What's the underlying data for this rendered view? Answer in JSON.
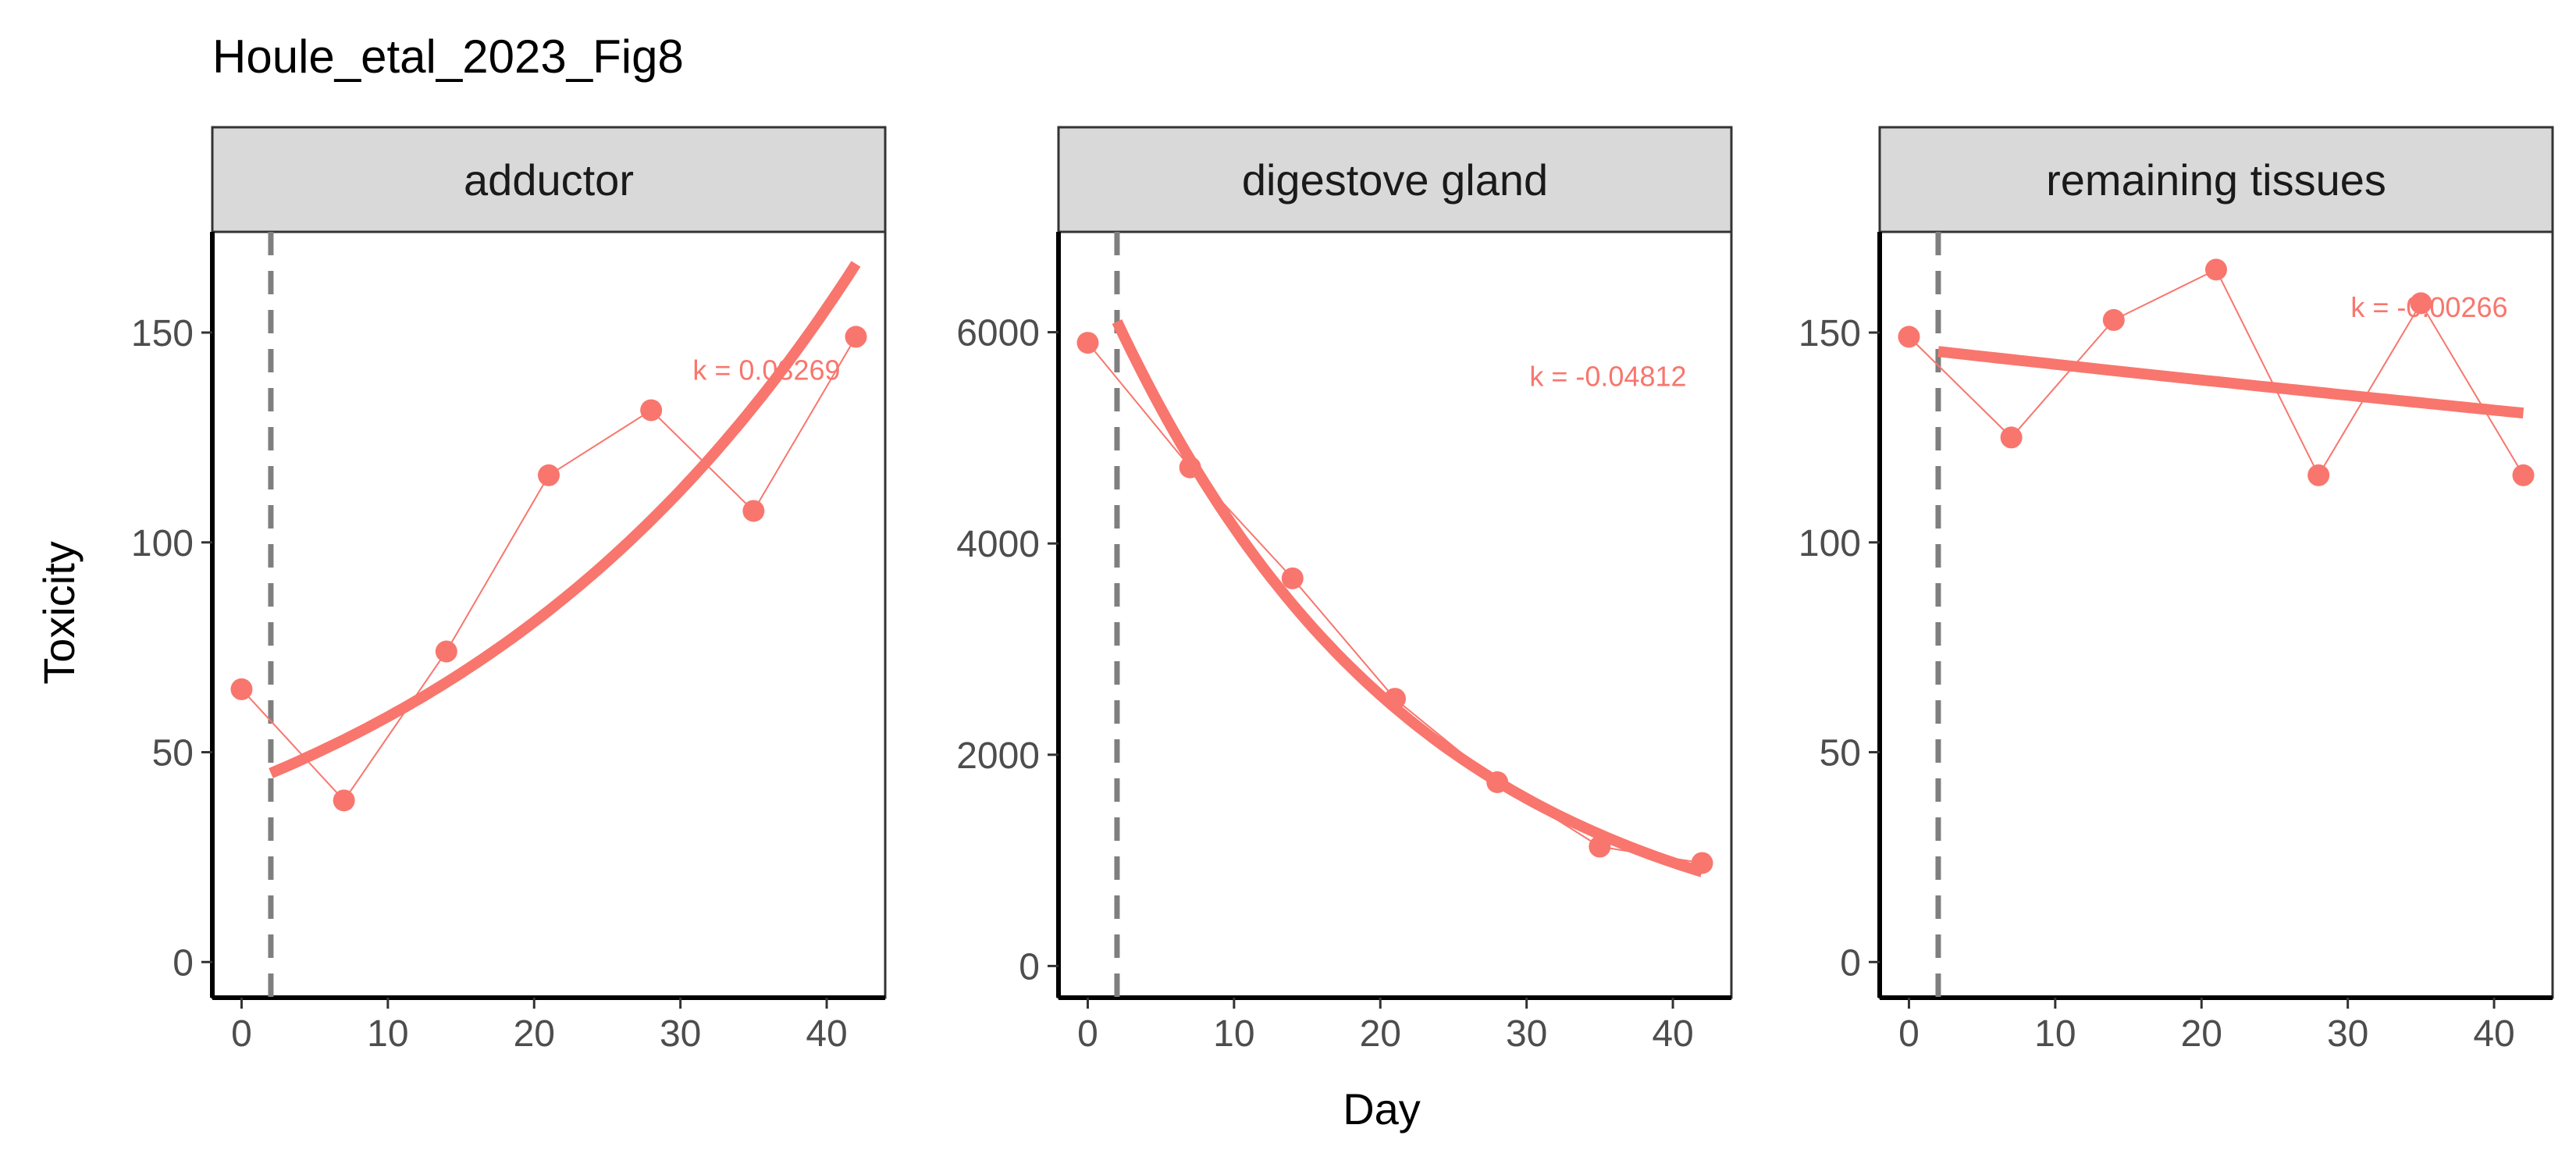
{
  "chart_data": {
    "type": "line",
    "title": "Houle_etal_2023_Fig8",
    "xlabel": "Day",
    "ylabel": "Toxicity",
    "color": "#F8766D",
    "vline_x": 2,
    "grid": false,
    "xlim": [
      -2,
      44
    ],
    "xticks": [
      0,
      10,
      20,
      30,
      40
    ],
    "x": [
      0,
      7,
      14,
      21,
      28,
      35,
      42
    ],
    "panels": [
      {
        "name": "adductor",
        "values": [
          65,
          38.5,
          74,
          116,
          131.5,
          107.5,
          149
        ],
        "ylim": [
          -8.5,
          174
        ],
        "yticks": [
          0,
          50,
          100,
          150
        ],
        "fit": {
          "x0": 2,
          "x1": 42,
          "y0": 45,
          "k": 0.03269
        },
        "annotation": "k = 0.03269",
        "annotation_pos": {
          "x": 42,
          "y": 141
        }
      },
      {
        "name": "digestove gland",
        "values": [
          5900,
          4720,
          3670,
          2530,
          1740,
          1130,
          975
        ],
        "ylim": [
          -300,
          6950
        ],
        "yticks": [
          0,
          2000,
          4000,
          6000
        ],
        "fit": {
          "x0": 2,
          "x1": 42,
          "y0": 6100,
          "k": -0.04812
        },
        "annotation": "k = -0.04812",
        "annotation_pos": {
          "x": 42,
          "y": 5580
        }
      },
      {
        "name": "remaining tissues",
        "values": [
          149,
          125,
          153,
          165,
          116,
          157,
          116
        ],
        "ylim": [
          -8.5,
          174
        ],
        "yticks": [
          0,
          50,
          100,
          150
        ],
        "fit": {
          "x0": 2,
          "x1": 42,
          "y0": 145.5,
          "k": -0.00266
        },
        "annotation": "k = -0.00266",
        "annotation_pos": {
          "x": 42,
          "y": 156
        }
      }
    ]
  }
}
